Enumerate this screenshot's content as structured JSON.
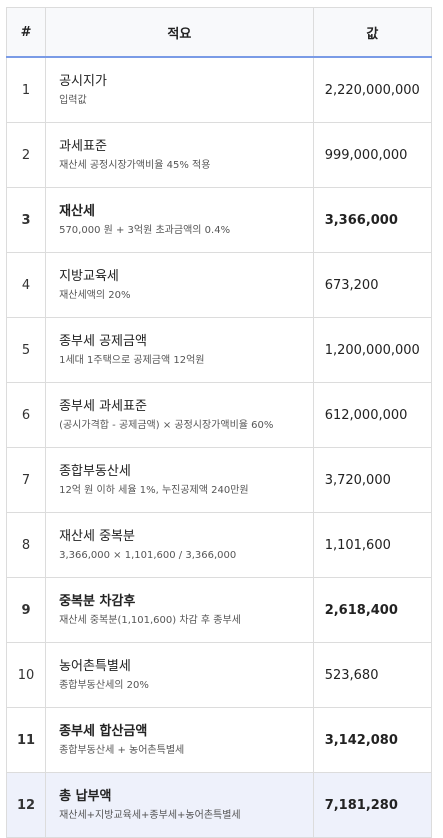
{
  "table": {
    "headers": [
      "#",
      "적요",
      "값"
    ],
    "rows": [
      {
        "num": "1",
        "title": "공시지가",
        "sub": "입력값",
        "value": "2,220,000,000",
        "bold": false,
        "highlight": false
      },
      {
        "num": "2",
        "title": "과세표준",
        "sub": "재산세 공정시장가액비율 45% 적용",
        "value": "999,000,000",
        "bold": false,
        "highlight": false
      },
      {
        "num": "3",
        "title": "재산세",
        "sub": "570,000 원 + 3억원 초과금액의 0.4%",
        "value": "3,366,000",
        "bold": true,
        "highlight": false
      },
      {
        "num": "4",
        "title": "지방교육세",
        "sub": "재산세액의 20%",
        "value": "673,200",
        "bold": false,
        "highlight": false
      },
      {
        "num": "5",
        "title": "종부세 공제금액",
        "sub": "1세대 1주택으로 공제금액 12억원",
        "value": "1,200,000,000",
        "bold": false,
        "highlight": false
      },
      {
        "num": "6",
        "title": "종부세 과세표준",
        "sub": "(공시가격합 - 공제금액) × 공정시장가액비율 60%",
        "value": "612,000,000",
        "bold": false,
        "highlight": false
      },
      {
        "num": "7",
        "title": "종합부동산세",
        "sub": "12억 원 이하 세율 1%, 누진공제액 240만원",
        "value": "3,720,000",
        "bold": false,
        "highlight": false
      },
      {
        "num": "8",
        "title": "재산세 중복분",
        "sub": "3,366,000 × 1,101,600 / 3,366,000",
        "value": "1,101,600",
        "bold": false,
        "highlight": false
      },
      {
        "num": "9",
        "title": "중복분 차감후",
        "sub": "재산세 중복분(1,101,600) 차감 후 종부세",
        "value": "2,618,400",
        "bold": true,
        "highlight": false
      },
      {
        "num": "10",
        "title": "농어촌특별세",
        "sub": "종합부동산세의 20%",
        "value": "523,680",
        "bold": false,
        "highlight": false
      },
      {
        "num": "11",
        "title": "종부세 합산금액",
        "sub": "종합부동산세 + 농어촌특별세",
        "value": "3,142,080",
        "bold": true,
        "highlight": false
      },
      {
        "num": "12",
        "title": "총 납부액",
        "sub": "재산세+지방교육세+종부세+농어촌특별세",
        "value": "7,181,280",
        "bold": true,
        "highlight": true
      }
    ]
  }
}
